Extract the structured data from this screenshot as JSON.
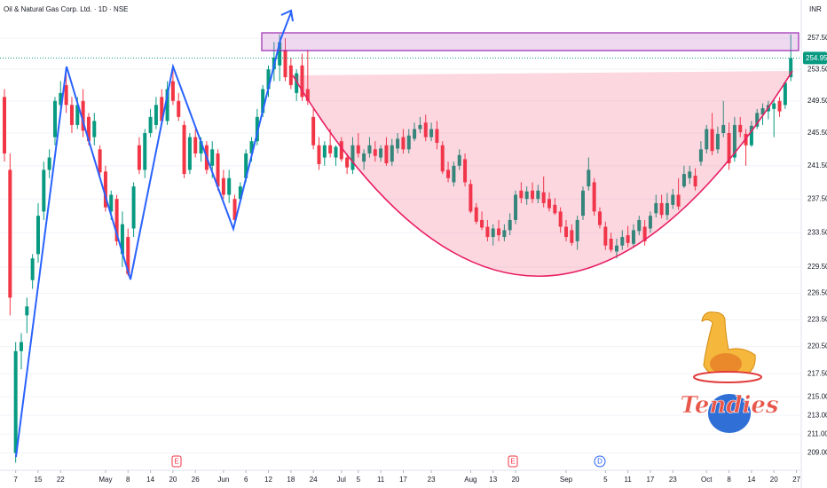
{
  "chart_data": {
    "type": "candlestick",
    "title": "Oil & Natural Gas Corp. Ltd. · 1D · NSE",
    "currency": "INR",
    "log_scale": true,
    "grid": true,
    "up_color": "#089981",
    "down_color": "#f23645",
    "ylim": [
      207.2,
      262.5
    ],
    "yticks": [
      {
        "value": 257.5,
        "label": "257.50"
      },
      {
        "value": 253.5,
        "label": "253.50"
      },
      {
        "value": 249.5,
        "label": "249.50"
      },
      {
        "value": 245.5,
        "label": "245.50"
      },
      {
        "value": 241.5,
        "label": "241.50"
      },
      {
        "value": 237.5,
        "label": "237.50"
      },
      {
        "value": 233.5,
        "label": "233.50"
      },
      {
        "value": 229.5,
        "label": "229.50"
      },
      {
        "value": 226.5,
        "label": "226.50"
      },
      {
        "value": 223.5,
        "label": "223.50"
      },
      {
        "value": 220.5,
        "label": "220.50"
      },
      {
        "value": 217.5,
        "label": "217.50"
      },
      {
        "value": 215,
        "label": "215.00"
      },
      {
        "value": 213,
        "label": "213.00"
      },
      {
        "value": 211,
        "label": "211.00"
      },
      {
        "value": 209,
        "label": "209.00"
      }
    ],
    "last_value": 254.95,
    "last_value_label": "254.95",
    "events": [
      "E",
      "E",
      "D"
    ],
    "logo_text": "Tendies",
    "categories": [
      null,
      null,
      "7",
      null,
      null,
      null,
      "15",
      null,
      null,
      null,
      "22",
      null,
      null,
      null,
      null,
      null,
      null,
      null,
      "May",
      null,
      null,
      null,
      "8",
      null,
      null,
      null,
      "14",
      null,
      null,
      null,
      "20",
      null,
      null,
      null,
      "26",
      null,
      null,
      null,
      null,
      "Jun",
      null,
      null,
      null,
      "6",
      null,
      null,
      null,
      "12",
      null,
      null,
      null,
      "18",
      null,
      null,
      null,
      "24",
      null,
      null,
      null,
      null,
      "Jul",
      null,
      null,
      "5",
      null,
      null,
      null,
      "11",
      null,
      null,
      null,
      "17",
      null,
      null,
      null,
      null,
      "23",
      null,
      null,
      null,
      null,
      null,
      null,
      "Aug",
      null,
      null,
      null,
      "13",
      null,
      null,
      null,
      "20",
      null,
      null,
      null,
      null,
      null,
      null,
      null,
      null,
      "Sep",
      null,
      null,
      null,
      null,
      null,
      null,
      "5",
      null,
      null,
      null,
      "11",
      null,
      null,
      null,
      "17",
      null,
      null,
      null,
      "23",
      null,
      null,
      null,
      null,
      null,
      "Oct",
      null,
      null,
      null,
      "8",
      null,
      null,
      null,
      "14",
      null,
      null,
      null,
      "20",
      null,
      null,
      null,
      "27"
    ],
    "ohlc": [
      [
        250,
        251,
        242,
        243
      ],
      [
        241,
        243,
        224,
        226
      ],
      [
        209,
        221,
        208,
        220
      ],
      [
        220,
        222,
        218,
        221
      ],
      [
        224,
        226,
        222,
        225
      ],
      [
        228,
        231,
        227,
        230.5
      ],
      [
        231,
        237,
        230,
        235.5
      ],
      [
        236,
        242,
        235,
        241
      ],
      [
        241,
        243.5,
        240,
        242.5
      ],
      [
        245,
        250,
        244,
        249.5
      ],
      [
        249,
        252,
        248,
        250.5
      ],
      [
        251.5,
        253,
        248,
        249
      ],
      [
        249,
        250,
        245.5,
        246.5
      ],
      [
        246.5,
        250,
        246,
        249
      ],
      [
        249.5,
        251,
        245,
        245.8
      ],
      [
        247.5,
        248,
        244,
        244.5
      ],
      [
        245,
        248,
        244,
        247
      ],
      [
        243.5,
        244,
        240,
        240.7
      ],
      [
        240.8,
        241.5,
        236,
        236.5
      ],
      [
        236,
        238.5,
        235,
        238
      ],
      [
        237.5,
        238,
        232,
        232.5
      ],
      [
        231,
        236,
        229.5,
        234.5
      ],
      [
        233,
        234,
        228.5,
        228.7
      ],
      [
        234,
        239.5,
        233,
        239
      ],
      [
        244,
        245,
        240.5,
        241
      ],
      [
        241,
        246,
        240,
        245.5
      ],
      [
        245.5,
        248.5,
        245,
        247.5
      ],
      [
        246.5,
        250,
        246,
        249
      ],
      [
        250,
        251,
        246.5,
        247
      ],
      [
        247,
        252,
        246.5,
        251
      ],
      [
        252,
        254,
        249,
        249.5
      ],
      [
        249.5,
        250.5,
        247,
        247.5
      ],
      [
        246.5,
        247,
        240,
        240.5
      ],
      [
        241,
        245.5,
        240.5,
        245
      ],
      [
        245,
        246,
        242.5,
        243
      ],
      [
        243,
        245,
        242,
        244.5
      ],
      [
        244,
        244.5,
        240.5,
        241
      ],
      [
        241.5,
        244.5,
        240,
        243.5
      ],
      [
        243,
        243.5,
        238.5,
        239
      ],
      [
        240,
        241,
        237.5,
        238
      ],
      [
        238,
        241,
        237,
        240
      ],
      [
        237.5,
        238,
        234.5,
        235
      ],
      [
        237.5,
        239.5,
        237,
        239
      ],
      [
        240,
        243.5,
        239.5,
        243
      ],
      [
        243,
        245,
        242,
        244.5
      ],
      [
        244.5,
        248.5,
        244,
        247.5
      ],
      [
        248,
        251.5,
        247.5,
        251
      ],
      [
        251,
        254,
        250,
        253.5
      ],
      [
        253.5,
        257,
        252,
        255
      ],
      [
        254,
        258,
        252,
        257
      ],
      [
        256,
        257.5,
        252,
        252.5
      ],
      [
        254,
        255,
        251,
        251.5
      ],
      [
        250.5,
        253.5,
        249.5,
        253
      ],
      [
        254,
        255.5,
        249.5,
        250
      ],
      [
        251,
        256,
        249,
        249.5
      ],
      [
        247.5,
        248.5,
        243.5,
        244
      ],
      [
        244,
        245,
        241,
        241.7
      ],
      [
        242.5,
        244.5,
        241.5,
        244
      ],
      [
        244,
        246,
        242.5,
        243
      ],
      [
        242.5,
        244,
        241.5,
        243.8
      ],
      [
        244.5,
        245,
        242,
        242.3
      ],
      [
        242.5,
        243,
        240.5,
        241.3
      ],
      [
        241,
        245,
        240.5,
        244
      ],
      [
        244,
        245.5,
        242.5,
        243
      ],
      [
        242,
        243.5,
        241,
        243
      ],
      [
        243,
        245,
        242.5,
        244
      ],
      [
        243.5,
        244.5,
        242,
        242.7
      ],
      [
        242.5,
        244,
        242,
        243.6
      ],
      [
        244,
        245,
        241.5,
        241.8
      ],
      [
        242,
        244.8,
        241.5,
        244
      ],
      [
        243.6,
        245.5,
        243,
        244.8
      ],
      [
        245,
        246,
        243,
        243.5
      ],
      [
        243.5,
        246,
        243,
        245.2
      ],
      [
        244.8,
        246.8,
        244.5,
        246
      ],
      [
        246,
        247.5,
        245.5,
        246.5
      ],
      [
        246.8,
        247.8,
        244.5,
        245
      ],
      [
        245,
        246.8,
        244.5,
        246
      ],
      [
        246,
        247,
        243.5,
        244.3
      ],
      [
        244,
        244.5,
        240.5,
        240.8
      ],
      [
        241,
        242,
        239.5,
        240
      ],
      [
        239.5,
        242,
        239,
        241.5
      ],
      [
        241.5,
        243.5,
        241,
        242.8
      ],
      [
        242.3,
        243,
        239,
        239.5
      ],
      [
        239.3,
        239.8,
        235.8,
        236
      ],
      [
        236.5,
        237,
        234.5,
        234.8
      ],
      [
        235,
        236,
        233.8,
        234.1
      ],
      [
        234.2,
        235,
        232.5,
        233
      ],
      [
        233,
        234.5,
        232,
        234
      ],
      [
        234,
        235,
        232.5,
        233.2
      ],
      [
        233,
        234.5,
        232.5,
        233.8
      ],
      [
        233.8,
        235.8,
        233.2,
        235
      ],
      [
        235,
        238.5,
        234.5,
        238
      ],
      [
        238.5,
        239.5,
        237,
        237.6
      ],
      [
        237.5,
        239,
        236.8,
        238.4
      ],
      [
        238.5,
        239.5,
        237,
        237.5
      ],
      [
        237.5,
        239.2,
        237,
        238.5
      ],
      [
        238.3,
        240.2,
        236.5,
        237
      ],
      [
        237.5,
        238.3,
        236,
        236.4
      ],
      [
        236.8,
        237.6,
        235.6,
        235.8
      ],
      [
        236,
        236.5,
        233.5,
        234.2
      ],
      [
        234.2,
        235,
        232.5,
        233
      ],
      [
        233.8,
        234.5,
        232,
        232.3
      ],
      [
        232.5,
        235.5,
        231.5,
        235
      ],
      [
        235.5,
        239,
        235,
        238.5
      ],
      [
        239,
        242.5,
        238.5,
        241
      ],
      [
        239.5,
        240,
        235.5,
        236
      ],
      [
        236,
        236.5,
        234,
        234.4
      ],
      [
        234.2,
        234.8,
        231.5,
        232
      ],
      [
        232.8,
        233.5,
        231.2,
        231.5
      ],
      [
        231.3,
        232.8,
        230.5,
        232
      ],
      [
        232,
        233.8,
        231.5,
        233
      ],
      [
        233.2,
        234.3,
        231.8,
        232.3
      ],
      [
        232.2,
        234.5,
        231.8,
        233.8
      ],
      [
        233.7,
        235.5,
        233.2,
        235
      ],
      [
        234.2,
        235,
        232,
        232.5
      ],
      [
        234,
        236,
        233.5,
        235.5
      ],
      [
        235.8,
        238,
        235.3,
        237
      ],
      [
        237,
        238,
        235.2,
        235.6
      ],
      [
        235.6,
        238.2,
        235,
        237
      ],
      [
        236.8,
        238.7,
        236.3,
        238
      ],
      [
        238,
        240,
        236.2,
        236.6
      ],
      [
        239,
        241.5,
        238.8,
        240.5
      ],
      [
        240,
        241.5,
        239.3,
        240.8
      ],
      [
        240.3,
        241.2,
        238.5,
        239
      ],
      [
        242,
        244.5,
        241.5,
        243.5
      ],
      [
        243.5,
        246.5,
        243,
        246
      ],
      [
        246,
        248,
        242.8,
        243.3
      ],
      [
        243.5,
        246.3,
        243,
        245.4
      ],
      [
        245.5,
        249.5,
        245,
        246.5
      ],
      [
        245.5,
        246.8,
        241,
        241.8
      ],
      [
        242.5,
        247.5,
        242,
        246.5
      ],
      [
        246.5,
        247.5,
        245,
        245.6
      ],
      [
        245.4,
        246,
        241.5,
        244
      ],
      [
        244,
        247,
        243.8,
        246.4
      ],
      [
        246.3,
        248.5,
        246,
        248
      ],
      [
        247.8,
        249.2,
        246.5,
        248.6
      ],
      [
        248.2,
        249.5,
        247.2,
        249
      ],
      [
        248.5,
        249.8,
        245,
        249.2
      ],
      [
        249.5,
        250,
        247.5,
        248.2
      ],
      [
        249,
        252,
        248.5,
        251.8
      ],
      [
        252.5,
        258,
        252,
        254.95
      ],
      null
    ]
  }
}
